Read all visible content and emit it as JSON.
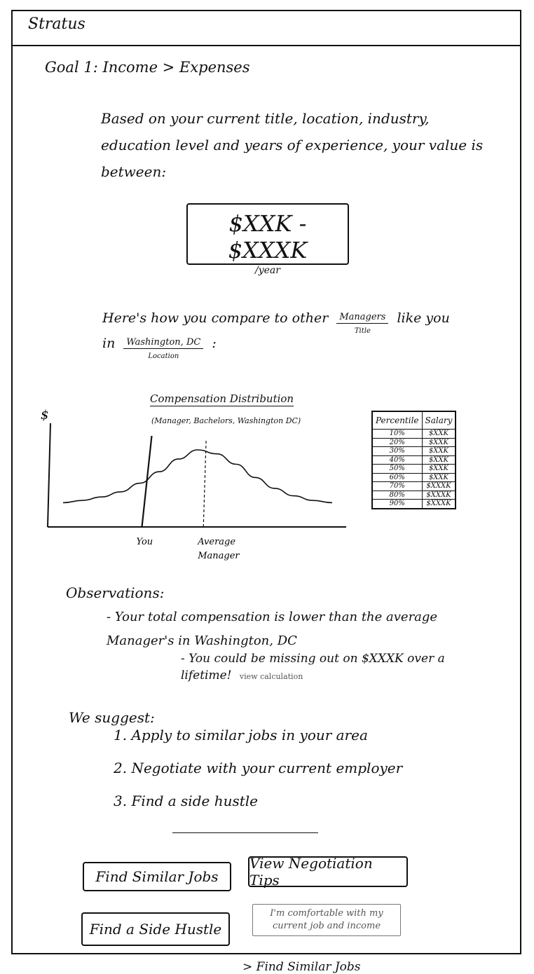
{
  "app": {
    "title": "Stratus"
  },
  "goal": {
    "heading": "Goal 1: Income > Expenses"
  },
  "value": {
    "intro": "Based on your current title, location, industry, education level and years of experience, your value is between:",
    "range": "$XXK - $XXXK",
    "unit": "/year"
  },
  "compare": {
    "prefix": "Here's how you compare to other",
    "title_value": "Managers",
    "title_caption": "Title",
    "middle": "like you in",
    "location_value": "Washington, DC",
    "location_caption": "Location",
    "suffix": ":"
  },
  "chart_data": {
    "type": "line",
    "title": "Compensation Distribution",
    "subtitle": "(Manager, Bachelors, Washington DC)",
    "ylabel": "$",
    "x": [
      0,
      1,
      2,
      3,
      4,
      5,
      6,
      7,
      8,
      9,
      10,
      11,
      12,
      13,
      14
    ],
    "y": [
      0.08,
      0.12,
      0.18,
      0.27,
      0.42,
      0.62,
      0.84,
      1.0,
      0.93,
      0.75,
      0.52,
      0.33,
      0.2,
      0.12,
      0.08
    ],
    "annotations": [
      {
        "label": "You",
        "x": 4.1,
        "style": "solid"
      },
      {
        "label": "Average Manager",
        "x": 7.3,
        "style": "dashed"
      }
    ]
  },
  "percentile_table": {
    "headers": [
      "Percentile",
      "Salary"
    ],
    "rows": [
      [
        "10%",
        "$XXK"
      ],
      [
        "20%",
        "$XXK"
      ],
      [
        "30%",
        "$XXK"
      ],
      [
        "40%",
        "$XXK"
      ],
      [
        "50%",
        "$XXK"
      ],
      [
        "60%",
        "$XXK"
      ],
      [
        "70%",
        "$XXXK"
      ],
      [
        "80%",
        "$XXXK"
      ],
      [
        "90%",
        "$XXXK"
      ]
    ]
  },
  "observations": {
    "heading": "Observations:",
    "item1": "- Your total compensation is lower than the average Manager's in Washington, DC",
    "item2": "- You could be missing out on $XXXK over a lifetime!",
    "view_calc": "view calculation"
  },
  "suggest": {
    "heading": "We suggest:",
    "items": [
      "1. Apply to similar jobs in your area",
      "2. Negotiate with your current employer",
      "3. Find a side hustle"
    ]
  },
  "buttons": {
    "find_jobs": "Find Similar Jobs",
    "negotiation_tips": "View Negotiation Tips",
    "side_hustle": "Find a Side Hustle",
    "comfortable": "I'm comfortable with my current job and income"
  },
  "bottom_note": "> Find Similar Jobs"
}
